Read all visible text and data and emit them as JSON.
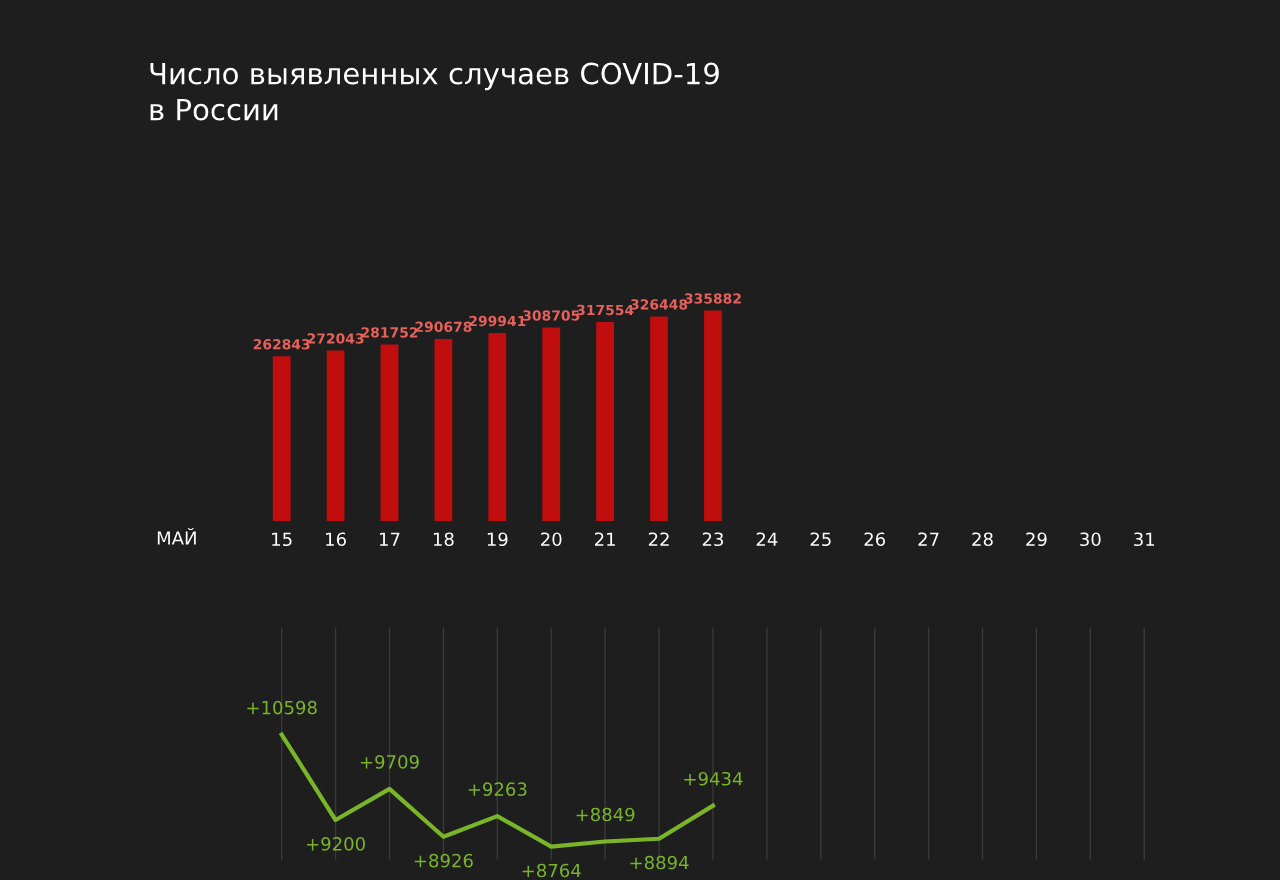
{
  "chart_data": [
    {
      "type": "bar",
      "title": "Число выявленных случаев COVID-19\nв России",
      "xlabel": "МАЙ",
      "categories": [
        "15",
        "16",
        "17",
        "18",
        "19",
        "20",
        "21",
        "22",
        "23",
        "24",
        "25",
        "26",
        "27",
        "28",
        "29",
        "30",
        "31"
      ],
      "values": [
        262843,
        272043,
        281752,
        290678,
        299941,
        308705,
        317554,
        326448,
        335882,
        null,
        null,
        null,
        null,
        null,
        null,
        null,
        null
      ],
      "color": "#c00d0d",
      "data_labels": true,
      "tick_labels": "x",
      "grid": false,
      "legend": false
    },
    {
      "type": "line",
      "categories": [
        null,
        null,
        null,
        null,
        null,
        null,
        null,
        null,
        null,
        null,
        null,
        null,
        null,
        null,
        null,
        null,
        null
      ],
      "values": [
        10598,
        9200,
        9709,
        8926,
        9263,
        8764,
        8849,
        8894,
        9434,
        null,
        null,
        null,
        null,
        null,
        null,
        null,
        null
      ],
      "value_labels": [
        "+10598",
        "+9200",
        "+9709",
        "+8926",
        "+9263",
        "+8764",
        "+8849",
        "+8894",
        "+9434",
        null,
        null,
        null,
        null,
        null,
        null,
        null,
        null
      ],
      "color": "#7ab427",
      "ylim": [
        8550,
        12350
      ],
      "grid": "x",
      "tick_labels": false,
      "marker": "none",
      "line_style": "solid",
      "legend": false
    }
  ]
}
